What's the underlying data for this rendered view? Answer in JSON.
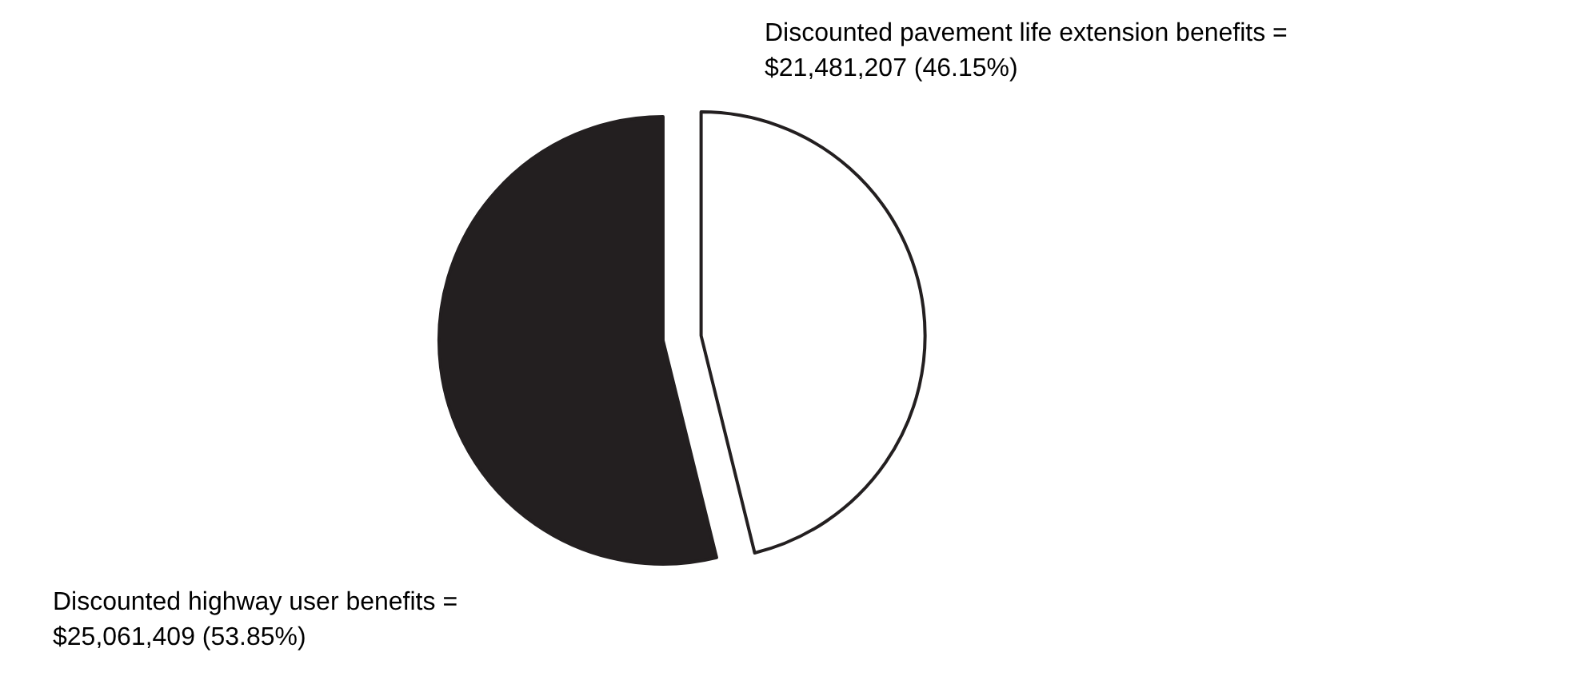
{
  "chart_data": {
    "type": "pie",
    "categories": [
      "Discounted highway user benefits =",
      "Discounted pavement life extension benefits ="
    ],
    "values": [
      25061409,
      21481207
    ],
    "value_labels": [
      "$25,061,409 (53.85%)",
      "$21,481,207 (46.15%)"
    ],
    "colors": [
      "#231f20",
      "#ffffff"
    ]
  }
}
